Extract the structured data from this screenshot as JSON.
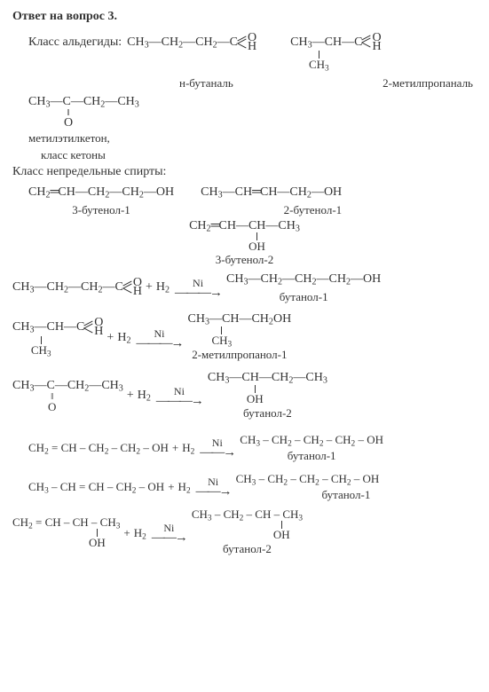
{
  "title": "Ответ на вопрос 3.",
  "sec1": {
    "label": "Класс альдегиды:",
    "f1": "CH₃—CH₂—CH₂—C",
    "f1_O": "O",
    "f1_H": "H",
    "n1": "н-бутаналь",
    "f2a": "CH₃—CH—C",
    "f2_O": "O",
    "f2_H": "H",
    "f2b": "CH₃",
    "n2": "2-метилпропаналь"
  },
  "ketone": {
    "top": "CH₃—C—CH₂—CH₃",
    "o": "O",
    "name1": "метилэтилкетон,",
    "name2": "класс кетоны"
  },
  "sec2": {
    "label": "Класс непредельные спирты:",
    "f1": "CH₂═CH—CH₂—CH₂—OH",
    "n1": "3-бутенол-1",
    "f2": "CH₃—CH═CH—CH₂—OH",
    "n2": "2-бутенол-1",
    "f3a": "CH₂═CH—CH—CH₃",
    "f3b": "OH",
    "n3": "3-бутенол-2"
  },
  "rxn": {
    "cat": "Ni",
    "plus": "+",
    "h2": "H₂",
    "r1L": "CH₃—CH₂—CH₂—C",
    "r1O": "O",
    "r1H": "H",
    "r1R": "CH₃—CH₂—CH₂—CH₂—OH",
    "r1N": "бутанол-1",
    "r2La": "CH₃—CH—C",
    "r2Lb": "CH₃",
    "r2O": "O",
    "r2H": "H",
    "r2Ra": "CH₃—CH—CH₂OH",
    "r2Rb": "CH₃",
    "r2N": "2-метилпропанол-1",
    "r3La": "CH₃—C—CH₂—CH₃",
    "r3Lb": "O",
    "r3Ra": "CH₃—CH—CH₂—CH₃",
    "r3Rb": "OH",
    "r3N": "бутанол-2",
    "r4L": "CH₂ = CH – CH₂ – CH₂ – OH",
    "r4R": "CH₃ – CH₂ – CH₂ – CH2 – OH",
    "r4N": "бутанол-1",
    "r5L": "CH₃ – CH = CH – CH₂ – OH",
    "r5R": "CH₃ – CH₂ – CH₂ – CH₂ – OH",
    "r5N": "бутанол-1",
    "r6La": "CH₂ = CH – CH – CH₃",
    "r6Lb": "OH",
    "r6Ra": "CH₃ – CH₂ – CH – CH₃",
    "r6Rb": "OH",
    "r6N": "бутанол-2"
  }
}
